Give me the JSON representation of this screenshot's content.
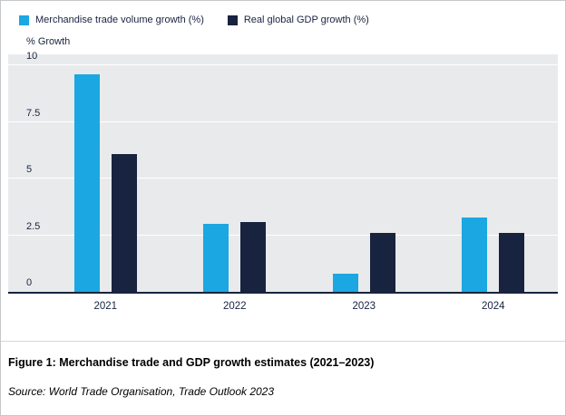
{
  "chart_data": {
    "type": "bar",
    "title": "",
    "ylabel": "% Growth",
    "xlabel": "",
    "ylim": [
      0,
      10
    ],
    "yticks": [
      0,
      2.5,
      5,
      7.5,
      10
    ],
    "grid": "horizontal",
    "legend_position": "top-left",
    "plot_background": "#e9eaec",
    "categories": [
      "2021",
      "2022",
      "2023",
      "2024"
    ],
    "series": [
      {
        "name": "Merchandise trade volume growth (%)",
        "color": "#1BA7E1",
        "values": [
          9.6,
          3.0,
          0.8,
          3.3
        ]
      },
      {
        "name": "Real global GDP growth (%)",
        "color": "#17233F",
        "values": [
          6.1,
          3.1,
          2.6,
          2.6
        ]
      }
    ]
  },
  "caption": "Figure 1: Merchandise trade and GDP growth estimates (2021–2023)",
  "source": "Source: World Trade Organisation, Trade Outlook 2023"
}
